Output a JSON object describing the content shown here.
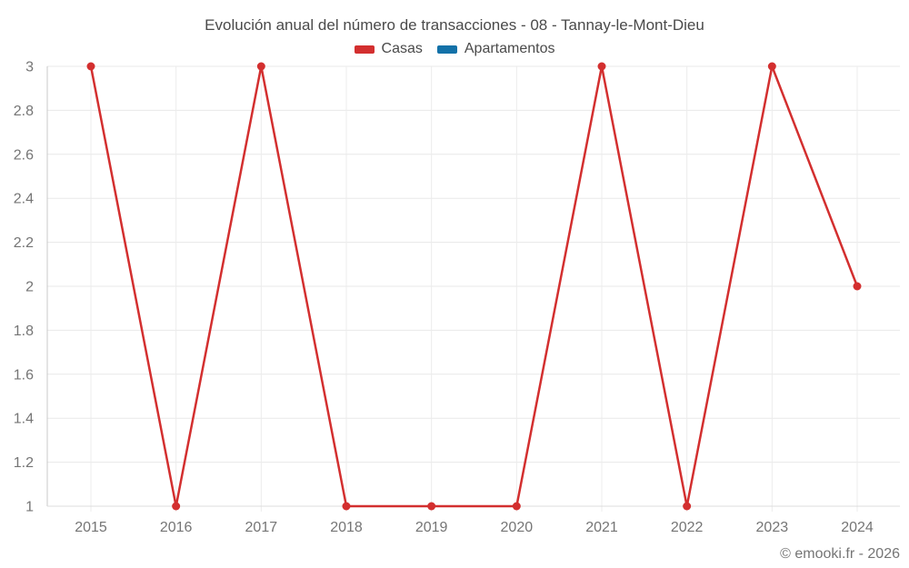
{
  "chart_data": {
    "type": "line",
    "title": "Evolución anual del número de transacciones - 08 - Tannay-le-Mont-Dieu",
    "x": [
      "2015",
      "2016",
      "2017",
      "2018",
      "2019",
      "2020",
      "2021",
      "2022",
      "2023",
      "2024"
    ],
    "series": [
      {
        "name": "Casas",
        "color": "#d32f2f",
        "values": [
          3,
          1,
          3,
          1,
          1,
          1,
          3,
          1,
          3,
          2
        ]
      },
      {
        "name": "Apartamentos",
        "color": "#1371a8",
        "values": []
      }
    ],
    "xlabel": "",
    "ylabel": "",
    "ylim": [
      1,
      3
    ],
    "ytick_step": 0.2,
    "grid": true,
    "legend_position": "top",
    "marker": "circle"
  },
  "footer": {
    "copyright": "© emooki.fr - 2026"
  }
}
